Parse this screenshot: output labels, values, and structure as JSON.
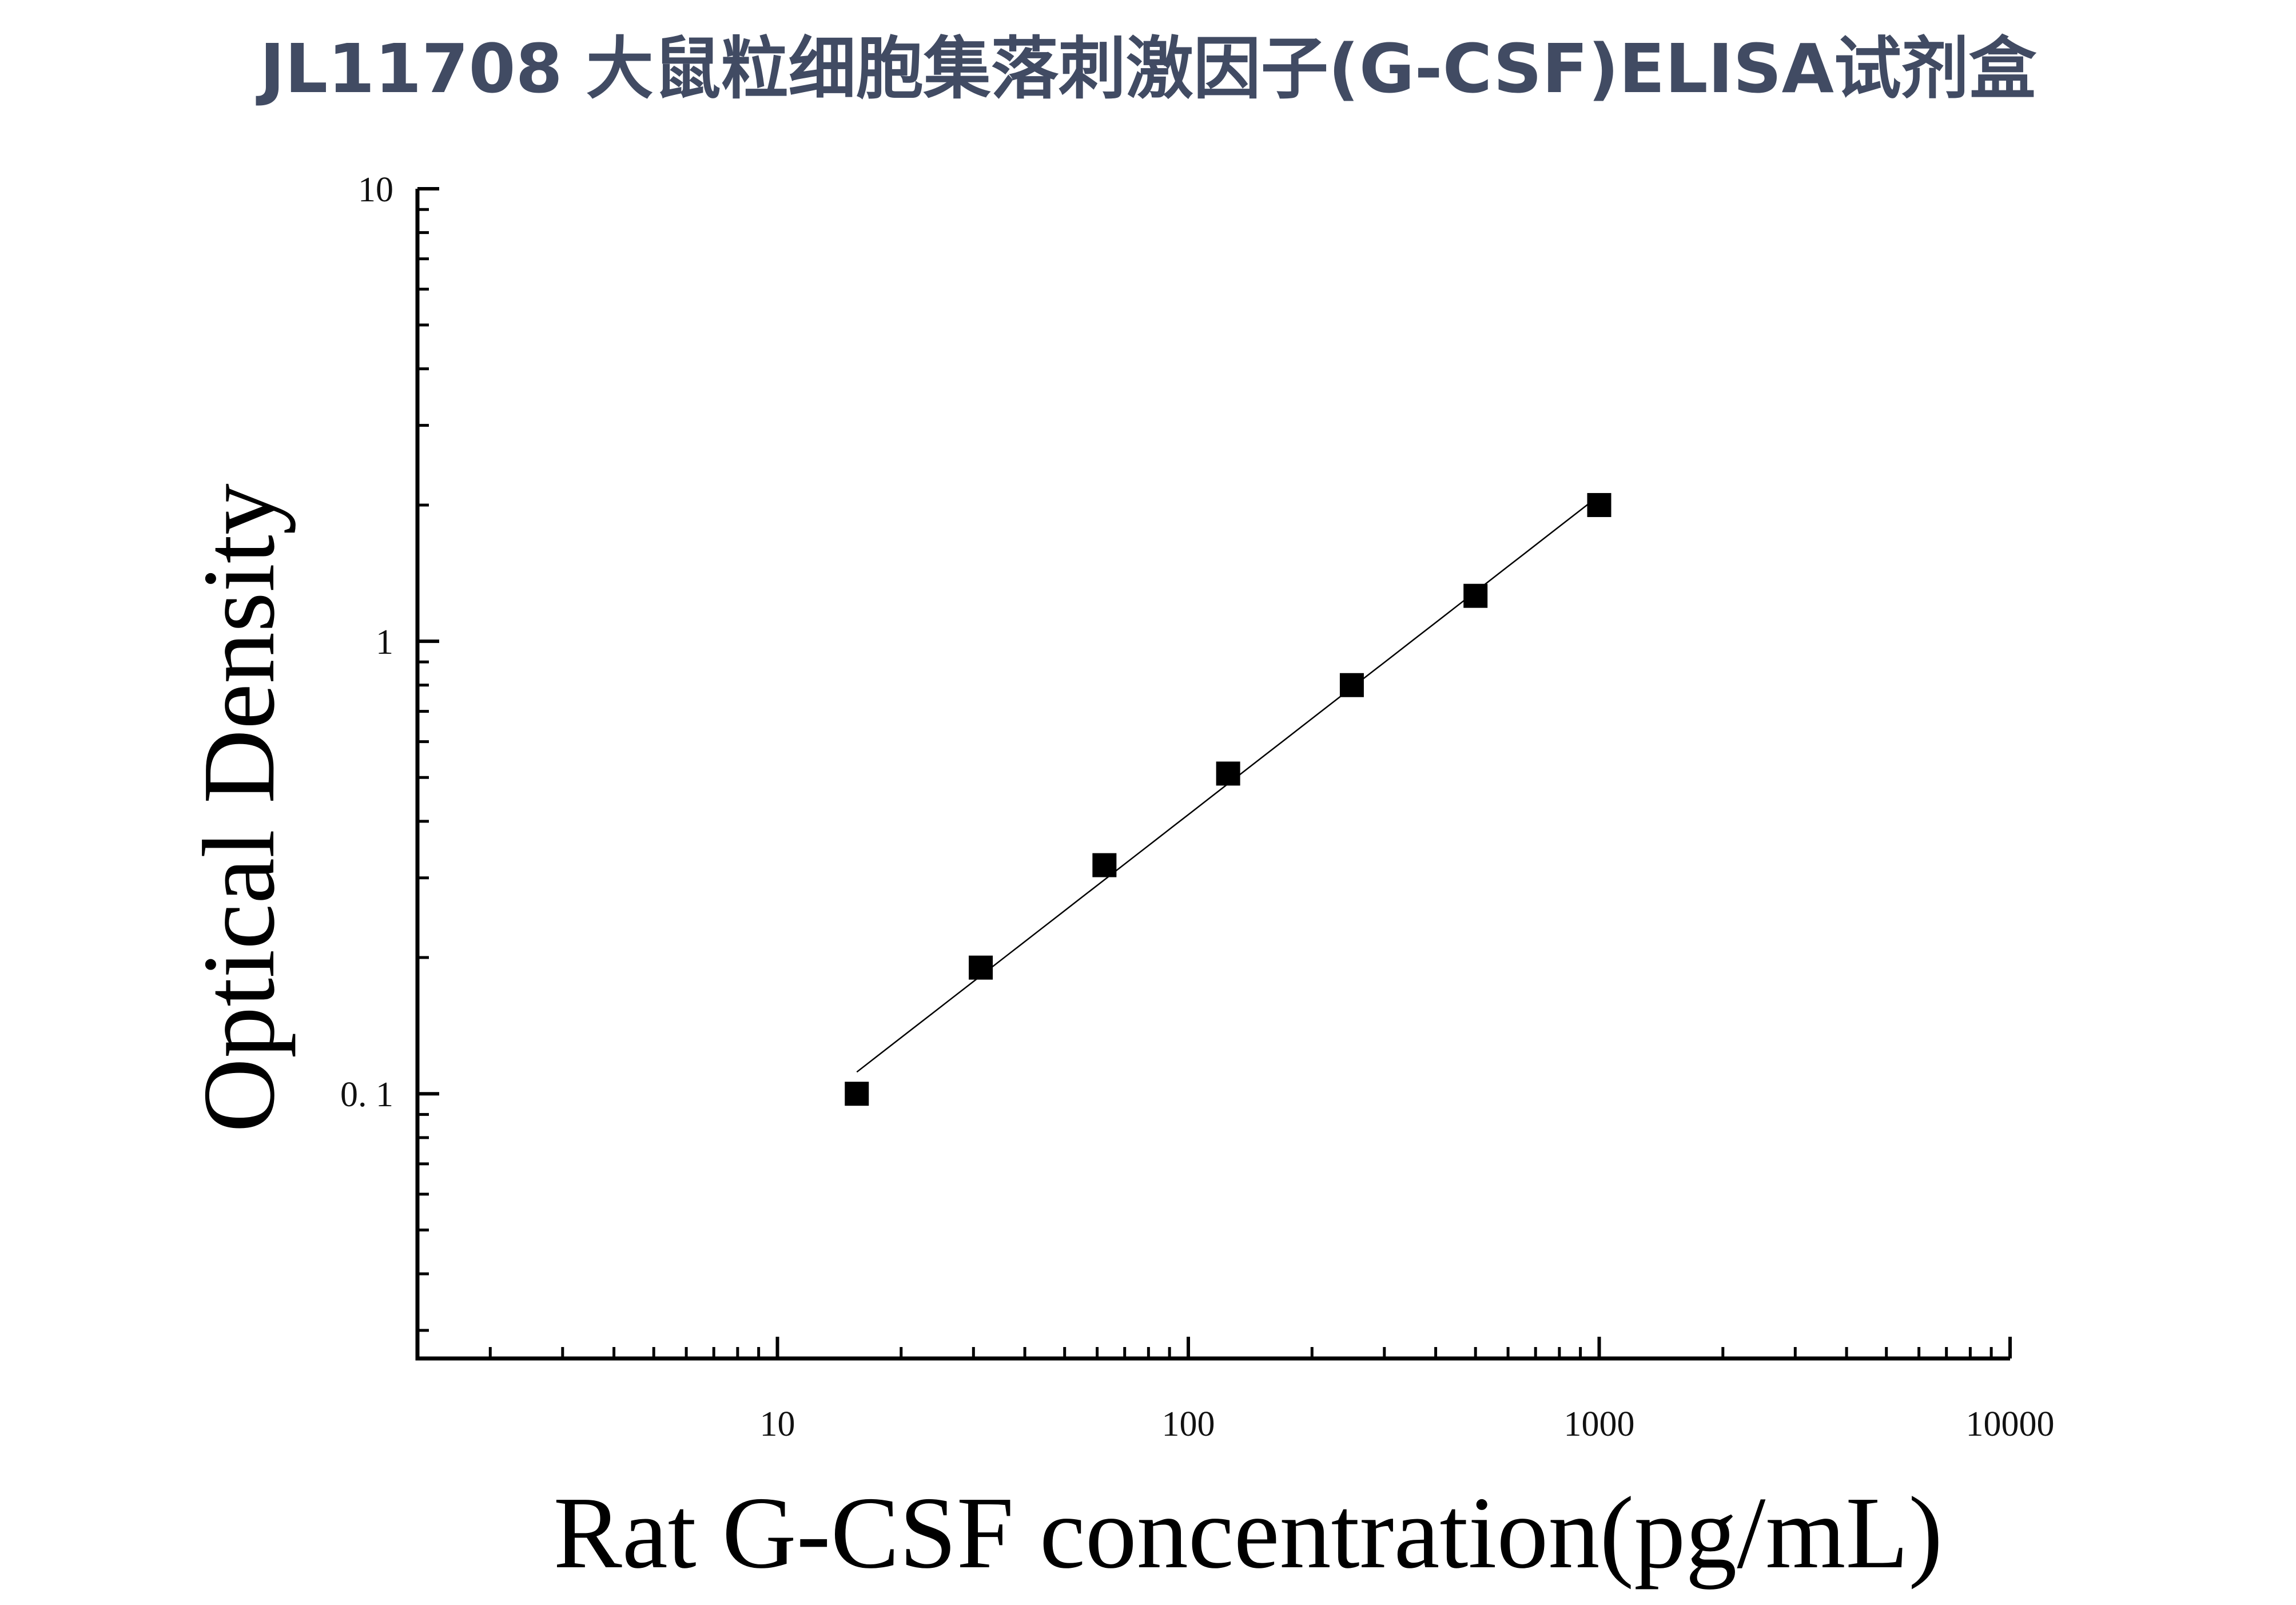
{
  "page_title": "JL11708 大鼠粒细胞集落刺激因子(G-CSF)ELISA试剂盒",
  "chart_data": {
    "type": "scatter",
    "title": "JL11708 大鼠粒细胞集落刺激因子(G-CSF)ELISA试剂盒",
    "xlabel": "Rat G-CSF concentration(pg/mL)",
    "ylabel": "Optical Density",
    "x_scale": "log",
    "y_scale": "log",
    "xlim": [
      1.33,
      10000
    ],
    "ylim": [
      0.026,
      10
    ],
    "x_tick_labels": [
      "10",
      "100",
      "1000",
      "10000"
    ],
    "x_tick_values": [
      10,
      100,
      1000,
      10000
    ],
    "y_tick_labels": [
      "0. 1",
      "1",
      "10"
    ],
    "y_tick_values": [
      0.1,
      1,
      10
    ],
    "grid": false,
    "legend": false,
    "marker": "square",
    "marker_color": "#000000",
    "fit_line": true,
    "x": [
      15.6,
      31.25,
      62.5,
      125,
      250,
      500,
      1000
    ],
    "y": [
      0.1,
      0.19,
      0.32,
      0.51,
      0.8,
      1.26,
      2.0
    ]
  }
}
